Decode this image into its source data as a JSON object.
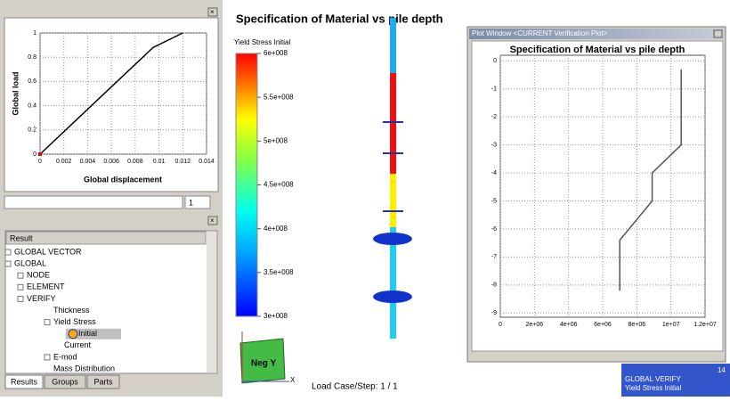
{
  "left_panel": {
    "load_plot": {
      "type": "line",
      "x_label": "Global displacement",
      "y_label": "Global load",
      "x": [
        0,
        0.0095,
        0.012
      ],
      "values": [
        0,
        0.88,
        1
      ],
      "color": "#000000",
      "xlim": [
        0,
        0.014
      ],
      "ylim": [
        0,
        1
      ],
      "xticks": [
        0,
        0.002,
        0.004,
        0.006,
        0.008,
        0.01,
        0.012,
        0.014
      ],
      "yticks": [
        0,
        0.2,
        0.4,
        0.6,
        0.8,
        1
      ],
      "grid": true
    },
    "step_value": "1"
  },
  "tree": {
    "header": "Result",
    "items": [
      "GLOBAL VECTOR",
      "GLOBAL",
      "NODE",
      "ELEMENT",
      "VERIFY",
      "Thickness",
      "Yield Stress",
      "Initial",
      "Current",
      "E-mod",
      "Mass Distribution"
    ],
    "tabs": [
      "Results",
      "Groups",
      "Parts"
    ]
  },
  "view": {
    "title": "Specification of  Material vs pile depth",
    "legend": {
      "title": "Yield Stress Initial",
      "range": [
        300000000,
        600000000
      ],
      "ticks": [
        {
          "value": 600000000,
          "label": "6e+008"
        },
        {
          "value": 550000000,
          "label": "5.5e+008"
        },
        {
          "value": 500000000,
          "label": "5e+008"
        },
        {
          "value": 450000000,
          "label": "4.5e+008"
        },
        {
          "value": 400000000,
          "label": "4e+008"
        },
        {
          "value": 350000000,
          "label": "3.5e+008"
        },
        {
          "value": 300000000,
          "label": "3e+008"
        }
      ]
    },
    "triad_label": "Neg Y",
    "axis_x": "X",
    "load_case": "Load Case/Step: 1 / 1",
    "status": {
      "number": "14",
      "line1": "GLOBAL VERIFY",
      "line2": "Yield Stress Initial"
    }
  },
  "plot_window": {
    "window_title": "Plot Window <CURRENT Verification Plot>",
    "chart": {
      "type": "line",
      "title": "Specification of  Material vs pile depth",
      "x": [
        10600000,
        10600000,
        8900000,
        8900000,
        7000000,
        7000000
      ],
      "values": [
        -0.3,
        -3,
        -4,
        -5,
        -6.4,
        -8.2
      ],
      "color": "#555555",
      "xlim": [
        0,
        12000000
      ],
      "ylim": [
        -9.15,
        0.2
      ],
      "xticks": [
        0,
        {
          "value": 2000000,
          "label": "2e+06"
        },
        {
          "value": 4000000,
          "label": "4e+06"
        },
        {
          "value": 6000000,
          "label": "6e+06"
        },
        {
          "value": 8000000,
          "label": "8e+06"
        },
        {
          "value": 10000000,
          "label": "1e+07"
        },
        {
          "value": 12000000,
          "label": "1.2e+07"
        }
      ],
      "yticks": [
        0,
        -1,
        -2,
        -3,
        -4,
        -5,
        -6,
        -7,
        -8,
        -9
      ],
      "grid": true
    }
  }
}
